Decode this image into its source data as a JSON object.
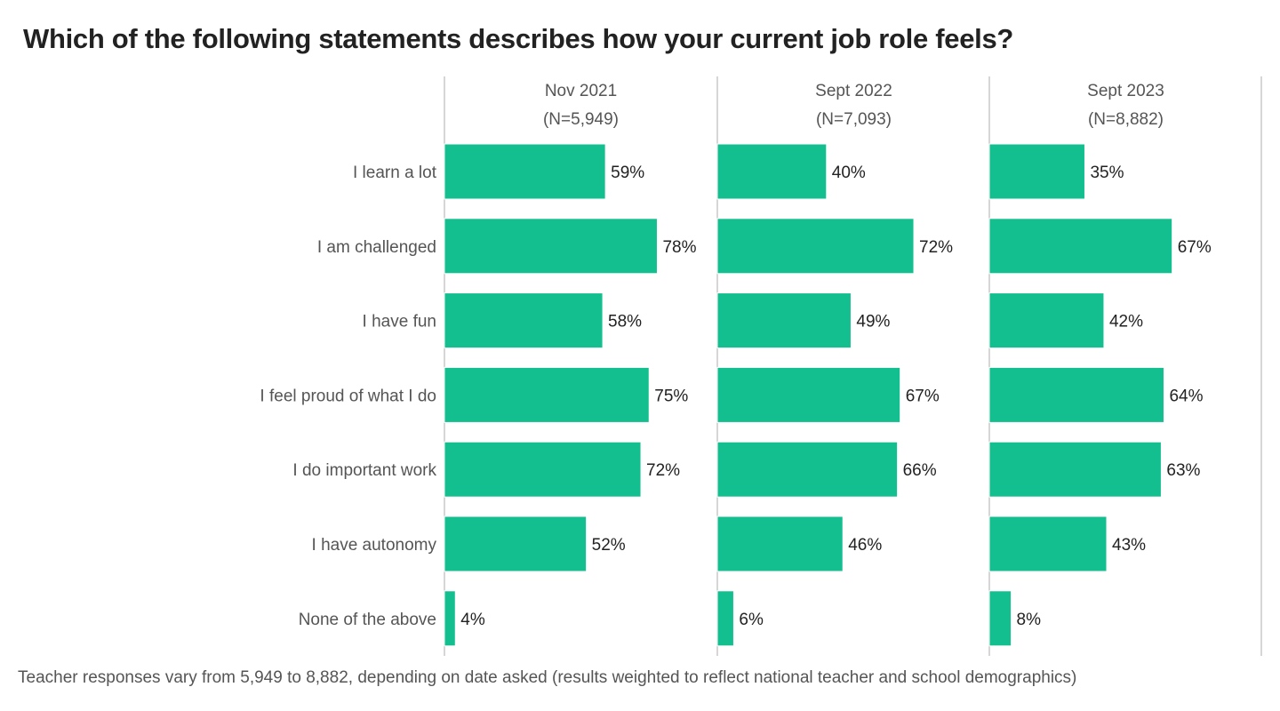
{
  "chart_data": {
    "type": "bar",
    "orientation": "horizontal",
    "title": "Which of the following statements describes how your current job role feels?",
    "footnote": "Teacher responses vary from 5,949 to 8,882, depending on date asked (results weighted to reflect national teacher and school demographics)",
    "categories": [
      "I learn a lot",
      "I am challenged",
      "I have fun",
      "I feel proud of what I do",
      "I do important work",
      "I have autonomy",
      "None of the above"
    ],
    "series": [
      {
        "name": "Nov 2021",
        "sample": "(N=5,949)",
        "values": [
          59,
          78,
          58,
          75,
          72,
          52,
          4
        ],
        "labels": [
          "59%",
          "78%",
          "58%",
          "75%",
          "72%",
          "52%",
          "4%"
        ]
      },
      {
        "name": "Sept 2022",
        "sample": "(N=7,093)",
        "values": [
          40,
          72,
          49,
          67,
          66,
          46,
          6
        ],
        "labels": [
          "40%",
          "72%",
          "49%",
          "67%",
          "66%",
          "46%",
          "6%"
        ]
      },
      {
        "name": "Sept 2023",
        "sample": "(N=8,882)",
        "values": [
          35,
          67,
          42,
          64,
          63,
          43,
          8
        ],
        "labels": [
          "35%",
          "67%",
          "42%",
          "64%",
          "63%",
          "43%",
          "8%"
        ]
      }
    ],
    "xlim": [
      0,
      100
    ],
    "grid": false,
    "bar_color": "#13be8f",
    "divider_color": "#c8c8c8"
  }
}
